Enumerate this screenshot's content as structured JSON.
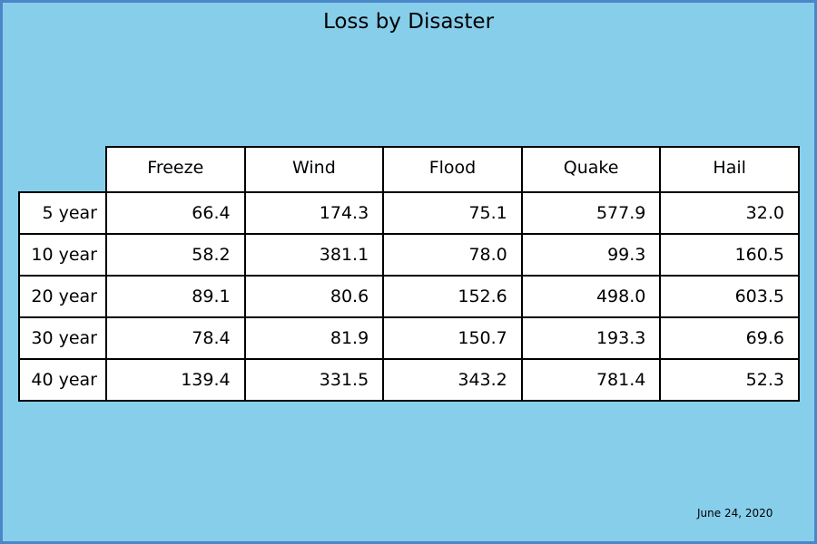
{
  "chart_data": {
    "type": "table",
    "title": "Loss by Disaster",
    "columns": [
      "Freeze",
      "Wind",
      "Flood",
      "Quake",
      "Hail"
    ],
    "rows": [
      {
        "label": "5 year",
        "values": [
          "66.4",
          "174.3",
          "75.1",
          "577.9",
          "32.0"
        ]
      },
      {
        "label": "10 year",
        "values": [
          "58.2",
          "381.1",
          "78.0",
          "99.3",
          "160.5"
        ]
      },
      {
        "label": "20 year",
        "values": [
          "89.1",
          "80.6",
          "152.6",
          "498.0",
          "603.5"
        ]
      },
      {
        "label": "30 year",
        "values": [
          "78.4",
          "81.9",
          "150.7",
          "193.3",
          "69.6"
        ]
      },
      {
        "label": "40 year",
        "values": [
          "139.4",
          "331.5",
          "343.2",
          "781.4",
          "52.3"
        ]
      }
    ],
    "date": "June 24, 2020"
  },
  "colors": {
    "background": "#87ceeb",
    "border": "#4a86c8",
    "cell_background": "#ffffff",
    "grid_line": "#000000"
  }
}
